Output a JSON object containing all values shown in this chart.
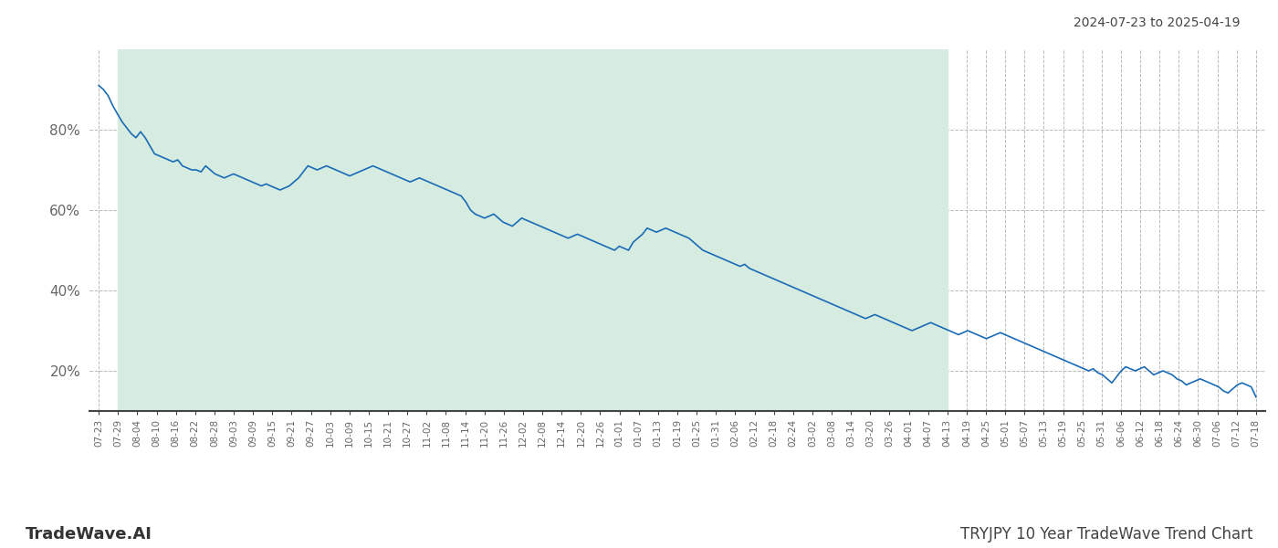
{
  "title_top_right": "2024-07-23 to 2025-04-19",
  "title_bottom_left": "TradeWave.AI",
  "title_bottom_right": "TRYJPY 10 Year TradeWave Trend Chart",
  "background_color": "#ffffff",
  "shaded_region_color": "#d6ece1",
  "line_color": "#1a6bb5",
  "line_width": 1.2,
  "ylim": [
    10,
    100
  ],
  "yticks": [
    20,
    40,
    60,
    80
  ],
  "ytick_labels": [
    "20%",
    "40%",
    "60%",
    "80%"
  ],
  "x_labels": [
    "07-23",
    "07-29",
    "08-04",
    "08-10",
    "08-16",
    "08-22",
    "08-28",
    "09-03",
    "09-09",
    "09-15",
    "09-21",
    "09-27",
    "10-03",
    "10-09",
    "10-15",
    "10-21",
    "10-27",
    "11-02",
    "11-08",
    "11-14",
    "11-20",
    "11-26",
    "12-02",
    "12-08",
    "12-14",
    "12-20",
    "12-26",
    "01-01",
    "01-07",
    "01-13",
    "01-19",
    "01-25",
    "01-31",
    "02-06",
    "02-12",
    "02-18",
    "02-24",
    "03-02",
    "03-08",
    "03-14",
    "03-20",
    "03-26",
    "04-01",
    "04-07",
    "04-13",
    "04-19",
    "04-25",
    "05-01",
    "05-07",
    "05-13",
    "05-19",
    "05-25",
    "05-31",
    "06-06",
    "06-12",
    "06-18",
    "06-24",
    "06-30",
    "07-06",
    "07-12",
    "07-18"
  ],
  "shade_label_start": "07-29",
  "shade_label_end": "04-13",
  "data_y": [
    91.0,
    90.0,
    88.5,
    86.0,
    84.0,
    82.0,
    80.5,
    79.0,
    78.0,
    79.5,
    78.0,
    76.0,
    74.0,
    73.5,
    73.0,
    72.5,
    72.0,
    72.5,
    71.0,
    70.5,
    70.0,
    70.0,
    69.5,
    71.0,
    70.0,
    69.0,
    68.5,
    68.0,
    68.5,
    69.0,
    68.5,
    68.0,
    67.5,
    67.0,
    66.5,
    66.0,
    66.5,
    66.0,
    65.5,
    65.0,
    65.5,
    66.0,
    67.0,
    68.0,
    69.5,
    71.0,
    70.5,
    70.0,
    70.5,
    71.0,
    70.5,
    70.0,
    69.5,
    69.0,
    68.5,
    69.0,
    69.5,
    70.0,
    70.5,
    71.0,
    70.5,
    70.0,
    69.5,
    69.0,
    68.5,
    68.0,
    67.5,
    67.0,
    67.5,
    68.0,
    67.5,
    67.0,
    66.5,
    66.0,
    65.5,
    65.0,
    64.5,
    64.0,
    63.5,
    62.0,
    60.0,
    59.0,
    58.5,
    58.0,
    58.5,
    59.0,
    58.0,
    57.0,
    56.5,
    56.0,
    57.0,
    58.0,
    57.5,
    57.0,
    56.5,
    56.0,
    55.5,
    55.0,
    54.5,
    54.0,
    53.5,
    53.0,
    53.5,
    54.0,
    53.5,
    53.0,
    52.5,
    52.0,
    51.5,
    51.0,
    50.5,
    50.0,
    51.0,
    50.5,
    50.0,
    52.0,
    53.0,
    54.0,
    55.5,
    55.0,
    54.5,
    55.0,
    55.5,
    55.0,
    54.5,
    54.0,
    53.5,
    53.0,
    52.0,
    51.0,
    50.0,
    49.5,
    49.0,
    48.5,
    48.0,
    47.5,
    47.0,
    46.5,
    46.0,
    46.5,
    45.5,
    45.0,
    44.5,
    44.0,
    43.5,
    43.0,
    42.5,
    42.0,
    41.5,
    41.0,
    40.5,
    40.0,
    39.5,
    39.0,
    38.5,
    38.0,
    37.5,
    37.0,
    36.5,
    36.0,
    35.5,
    35.0,
    34.5,
    34.0,
    33.5,
    33.0,
    33.5,
    34.0,
    33.5,
    33.0,
    32.5,
    32.0,
    31.5,
    31.0,
    30.5,
    30.0,
    30.5,
    31.0,
    31.5,
    32.0,
    31.5,
    31.0,
    30.5,
    30.0,
    29.5,
    29.0,
    29.5,
    30.0,
    29.5,
    29.0,
    28.5,
    28.0,
    28.5,
    29.0,
    29.5,
    29.0,
    28.5,
    28.0,
    27.5,
    27.0,
    26.5,
    26.0,
    25.5,
    25.0,
    24.5,
    24.0,
    23.5,
    23.0,
    22.5,
    22.0,
    21.5,
    21.0,
    20.5,
    20.0,
    20.5,
    19.5,
    19.0,
    18.0,
    17.0,
    18.5,
    20.0,
    21.0,
    20.5,
    20.0,
    20.5,
    21.0,
    20.0,
    19.0,
    19.5,
    20.0,
    19.5,
    19.0,
    18.0,
    17.5,
    16.5,
    17.0,
    17.5,
    18.0,
    17.5,
    17.0,
    16.5,
    16.0,
    15.0,
    14.5,
    15.5,
    16.5,
    17.0,
    16.5,
    16.0,
    13.5
  ]
}
